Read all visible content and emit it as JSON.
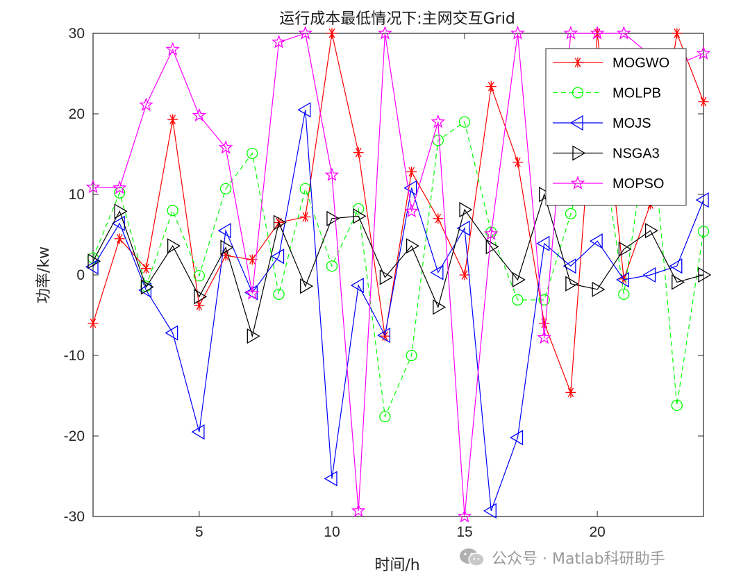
{
  "chart_data": {
    "type": "line",
    "title": "运行成本最低情况下:主网交互Grid",
    "xlabel": "时间/h",
    "ylabel": "功率/kw",
    "xlim": [
      1,
      24
    ],
    "ylim": [
      -30,
      30
    ],
    "xticks": [
      5,
      10,
      15,
      20
    ],
    "yticks": [
      -30,
      -20,
      -10,
      0,
      10,
      20,
      30
    ],
    "x": [
      1,
      2,
      3,
      4,
      5,
      6,
      7,
      8,
      9,
      10,
      11,
      12,
      13,
      14,
      15,
      16,
      17,
      18,
      19,
      20,
      21,
      22,
      23,
      24
    ],
    "legend_position": "top-right",
    "grid": false,
    "series": [
      {
        "name": "MOGWO",
        "color": "#ff0000",
        "marker": "asterisk",
        "dash": "solid",
        "values": [
          -6,
          4.5,
          0.8,
          19.3,
          -3.8,
          2.4,
          1.9,
          6.5,
          7.2,
          30,
          15.2,
          -7.6,
          12.8,
          7,
          0,
          23.4,
          14,
          -6,
          -14.6,
          30,
          -0.5,
          8.8,
          30,
          21.5
        ]
      },
      {
        "name": "MOLPB",
        "color": "#00ff00",
        "marker": "circle",
        "dash": "dashed",
        "values": [
          2.1,
          10.2,
          -1.4,
          8,
          -0.1,
          10.7,
          15.1,
          -2.4,
          10.7,
          1.1,
          8.2,
          -17.6,
          -10,
          16.7,
          19,
          5.3,
          -3.1,
          -3.1,
          7.6,
          20.4,
          -2.4,
          20.1,
          -16.2,
          5.4
        ]
      },
      {
        "name": "MOJS",
        "color": "#0000ff",
        "marker": "triangle-left",
        "dash": "solid",
        "values": [
          1,
          6.4,
          -1.9,
          -7.2,
          -19.5,
          5.5,
          -2.2,
          2.3,
          20.5,
          -25.3,
          -1.3,
          -7.5,
          10.8,
          0.3,
          5.8,
          -29.3,
          -20.2,
          3.9,
          1.1,
          4.2,
          -0.6,
          0,
          1.1,
          9.3
        ]
      },
      {
        "name": "NSGA3",
        "color": "#000000",
        "marker": "triangle-right",
        "dash": "solid",
        "values": [
          1.7,
          7.9,
          -1.5,
          3.6,
          -2.7,
          3.4,
          -7.6,
          6.5,
          -1.4,
          7,
          7.3,
          -0.3,
          3.6,
          -4,
          8.1,
          3.5,
          -0.6,
          10,
          -1.1,
          -1.8,
          3.2,
          5.5,
          -0.9,
          0
        ]
      },
      {
        "name": "MOPSO",
        "color": "#ff00ff",
        "marker": "star",
        "dash": "solid",
        "values": [
          10.9,
          10.8,
          21.1,
          28,
          19.8,
          15.8,
          -2.3,
          28.9,
          30,
          12.4,
          -29.3,
          30,
          7.9,
          19,
          -30,
          5.1,
          30,
          -7.8,
          30,
          30,
          30,
          27.3,
          26.1,
          27.5
        ]
      }
    ]
  },
  "watermark": {
    "text": "公众号 · Matlab科研助手",
    "icon": "wechat-icon"
  }
}
